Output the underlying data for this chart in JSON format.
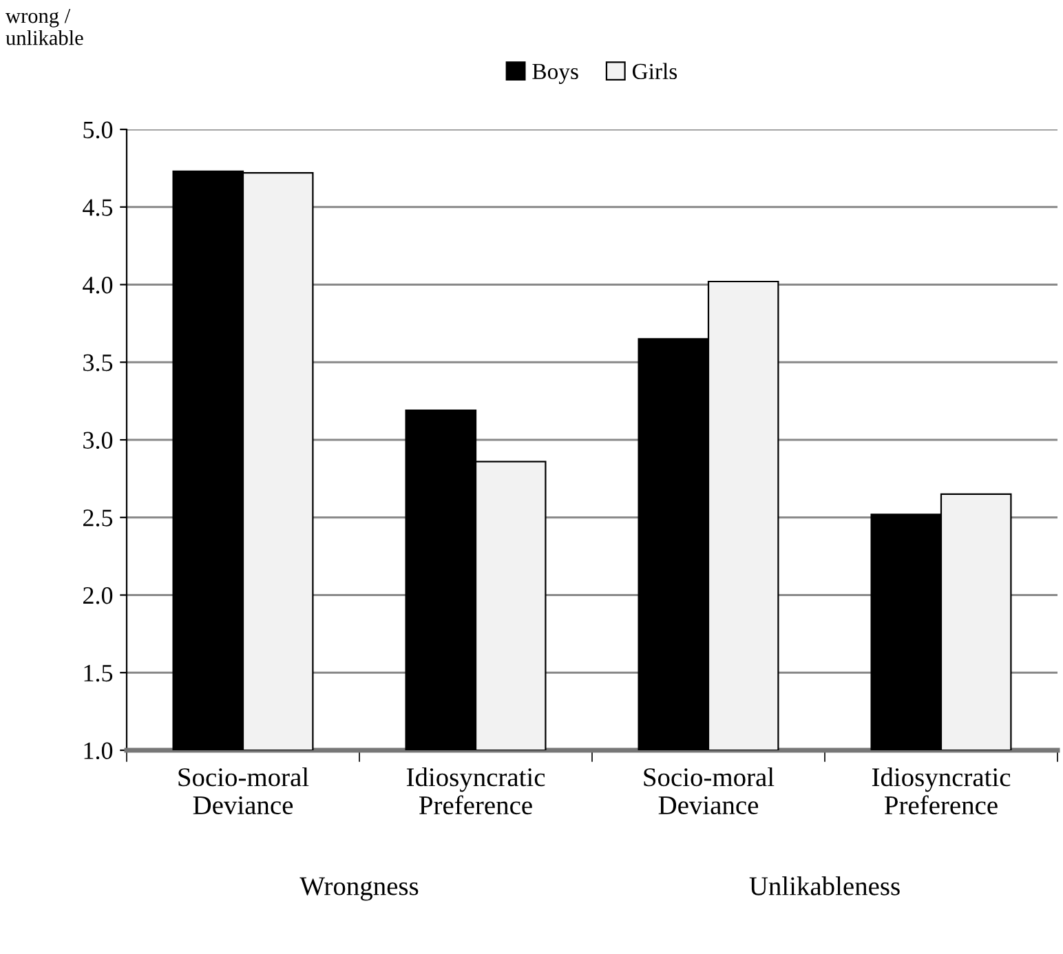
{
  "chart_data": {
    "type": "bar",
    "ylabel": "wrong /\nunlikable",
    "categories": [
      "Socio-moral\nDeviance",
      "Idiosyncratic\nPreference",
      "Socio-moral\nDeviance",
      "Idiosyncratic\nPreference"
    ],
    "series": [
      {
        "name": "Boys",
        "color": "#000000",
        "values": [
          4.73,
          3.19,
          3.65,
          2.52
        ]
      },
      {
        "name": "Girls",
        "color": "#f2f2f2",
        "values": [
          4.72,
          2.86,
          4.02,
          2.65
        ]
      }
    ],
    "ylim": [
      1.0,
      5.0
    ],
    "yticks": [
      {
        "value": 1,
        "label": "1.0"
      },
      1.5,
      {
        "value": 2,
        "label": "2.0"
      },
      2.5,
      {
        "value": 3,
        "label": "3.0"
      },
      3.5,
      {
        "value": 4,
        "label": "4.0"
      },
      4.5,
      {
        "value": 5,
        "label": "5.0"
      }
    ],
    "grid": "y",
    "legend": "top",
    "annotations": [
      "Wrongness",
      "Unlikableness"
    ]
  }
}
